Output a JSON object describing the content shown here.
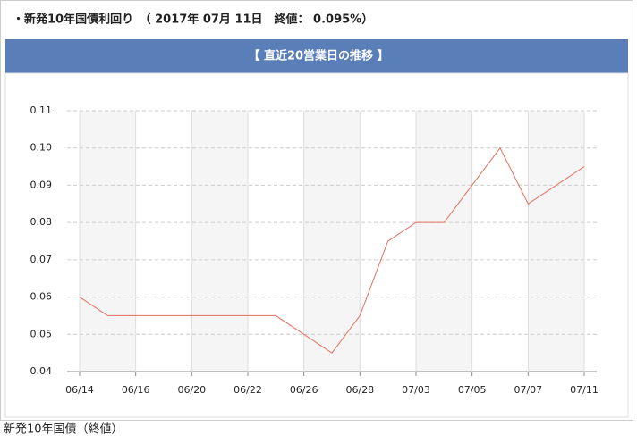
{
  "header": {
    "title": "・新発10年国債利回り　（ 2017年 07月 11日　終値： 0.095%）"
  },
  "chart_data": {
    "type": "line",
    "title": "【 直近20営業日の推移 】",
    "categories": [
      "06/14",
      null,
      "06/16",
      null,
      "06/20",
      null,
      "06/22",
      null,
      "06/26",
      null,
      "06/28",
      null,
      "07/03",
      null,
      "07/05",
      null,
      "07/07",
      null,
      "07/11"
    ],
    "series": [
      {
        "name": "新発10年国債（終値）",
        "color": "#e2705f",
        "values": [
          0.06,
          0.055,
          0.055,
          0.055,
          0.055,
          0.055,
          0.055,
          0.055,
          0.05,
          0.045,
          0.055,
          0.075,
          0.08,
          0.08,
          0.09,
          0.1,
          0.085,
          0.09,
          0.095
        ]
      }
    ],
    "ylim": [
      0.04,
      0.11
    ],
    "yticks": [
      0.04,
      0.05,
      0.06,
      0.07,
      0.08,
      0.09,
      {
        "value": 0.1,
        "label": "0.10"
      },
      0.11
    ],
    "grid": true
  }
}
